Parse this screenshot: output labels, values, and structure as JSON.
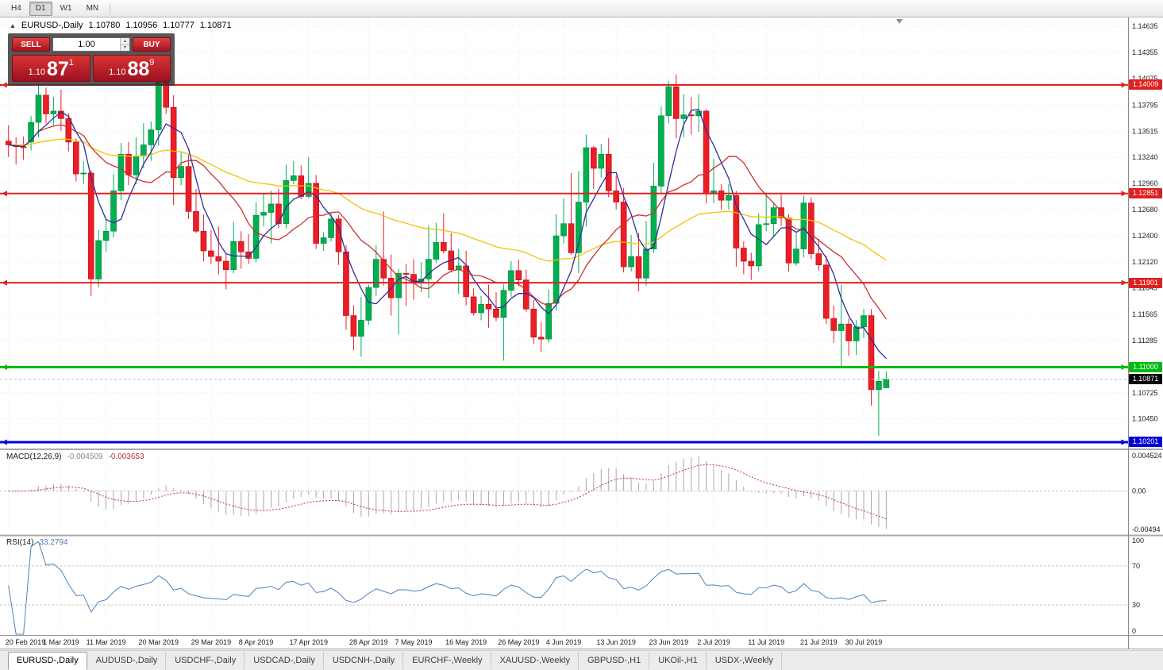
{
  "toolbar": {
    "timeframes": [
      {
        "label": "H4",
        "active": false
      },
      {
        "label": "D1",
        "active": true
      },
      {
        "label": "W1",
        "active": false
      },
      {
        "label": "MN",
        "active": false
      }
    ]
  },
  "icons": {
    "collapse": "▲",
    "spinner_up": "▲",
    "spinner_down": "▼",
    "shift_marker": "▼"
  },
  "chart_header": {
    "symbol_period": "EURUSD-,Daily",
    "open": "1.10780",
    "high": "1.10956",
    "low": "1.10777",
    "close": "1.10871"
  },
  "trade_panel": {
    "sell_label": "SELL",
    "buy_label": "BUY",
    "volume": "1.00",
    "sell_price": {
      "prefix": "1.10",
      "big": "87",
      "sup": "1"
    },
    "buy_price": {
      "prefix": "1.10",
      "big": "88",
      "sup": "9"
    }
  },
  "indicators": {
    "macd": {
      "label": "MACD(12,26,9)",
      "value_main": "-0.004509",
      "value_signal": "-0.003653",
      "ticks": [
        "0.004524",
        "0.00",
        "-0.00494"
      ],
      "params": [
        12,
        26,
        9
      ]
    },
    "rsi": {
      "label": "RSI(14)",
      "value": "33.2794",
      "ticks": [
        "100",
        "70",
        "30",
        "0"
      ],
      "levels": [
        70,
        30
      ],
      "period": 14
    }
  },
  "price_axis": {
    "range": [
      1.10133,
      1.14728
    ],
    "ticks": [
      "1.14635",
      "1.14355",
      "1.14075",
      "1.13795",
      "1.13515",
      "1.13240",
      "1.12960",
      "1.12680",
      "1.12400",
      "1.12120",
      "1.11845",
      "1.11565",
      "1.11285",
      "1.10725",
      "1.10450"
    ],
    "levels": [
      {
        "label": "1.14009",
        "price": 1.14009,
        "color": "#e02020",
        "width": 2
      },
      {
        "label": "1.12851",
        "price": 1.12851,
        "color": "#e02020",
        "width": 2
      },
      {
        "label": "1.11901",
        "price": 1.11901,
        "color": "#e02020",
        "width": 2
      },
      {
        "label": "1.11000",
        "price": 1.11,
        "color": "#00bb10",
        "width": 3
      },
      {
        "label": "1.10201",
        "price": 1.10201,
        "color": "#0000d8",
        "width": 3
      }
    ],
    "current": {
      "label": "1.10871",
      "price": 1.10871,
      "bg": "#000000"
    }
  },
  "chart_data": {
    "type": "candlestick",
    "symbol": "EURUSD-",
    "timeframe": "Daily",
    "ylim": [
      1.10133,
      1.14728
    ],
    "x_ticks": [
      {
        "label": "20 Feb 2019",
        "i": 0
      },
      {
        "label": "1 Mar 2019",
        "i": 7
      },
      {
        "label": "11 Mar 2019",
        "i": 13
      },
      {
        "label": "20 Mar 2019",
        "i": 20
      },
      {
        "label": "29 Mar 2019",
        "i": 27
      },
      {
        "label": "8 Apr 2019",
        "i": 33
      },
      {
        "label": "17 Apr 2019",
        "i": 40
      },
      {
        "label": "28 Apr 2019",
        "i": 48
      },
      {
        "label": "7 May 2019",
        "i": 54
      },
      {
        "label": "16 May 2019",
        "i": 61
      },
      {
        "label": "26 May 2019",
        "i": 68
      },
      {
        "label": "4 Jun 2019",
        "i": 74
      },
      {
        "label": "13 Jun 2019",
        "i": 81
      },
      {
        "label": "23 Jun 2019",
        "i": 88
      },
      {
        "label": "2 Jul 2019",
        "i": 94
      },
      {
        "label": "11 Jul 2019",
        "i": 101
      },
      {
        "label": "21 Jul 2019",
        "i": 108
      },
      {
        "label": "30 Jul 2019",
        "i": 114
      }
    ],
    "moving_averages": [
      {
        "name": "ma-slow",
        "type": "ema",
        "period": 50,
        "color": "#f0c400"
      },
      {
        "name": "ma-mid",
        "type": "sma",
        "period": 12,
        "color": "#cc2f2f"
      },
      {
        "name": "ma-fast",
        "type": "sma",
        "period": 5,
        "color": "#2d2d9e"
      }
    ],
    "ohlc": [
      [
        1.1341,
        1.1358,
        1.1324,
        1.1337
      ],
      [
        1.1337,
        1.1345,
        1.1316,
        1.1335
      ],
      [
        1.1335,
        1.1346,
        1.1321,
        1.1334
      ],
      [
        1.134,
        1.1368,
        1.1331,
        1.1361
      ],
      [
        1.1361,
        1.1403,
        1.1345,
        1.139
      ],
      [
        1.139,
        1.1398,
        1.136,
        1.137
      ],
      [
        1.137,
        1.1388,
        1.1358,
        1.1373
      ],
      [
        1.1373,
        1.1396,
        1.1352,
        1.1365
      ],
      [
        1.1365,
        1.1371,
        1.133,
        1.134
      ],
      [
        1.134,
        1.1344,
        1.1298,
        1.1306
      ],
      [
        1.1306,
        1.132,
        1.1295,
        1.1307
      ],
      [
        1.1307,
        1.131,
        1.1176,
        1.1194
      ],
      [
        1.1194,
        1.1246,
        1.1185,
        1.1235
      ],
      [
        1.1235,
        1.1258,
        1.1223,
        1.1245
      ],
      [
        1.1245,
        1.1306,
        1.1238,
        1.1288
      ],
      [
        1.1288,
        1.1339,
        1.1278,
        1.1327
      ],
      [
        1.1327,
        1.134,
        1.1294,
        1.1305
      ],
      [
        1.1305,
        1.1345,
        1.1295,
        1.1325
      ],
      [
        1.1325,
        1.136,
        1.1312,
        1.1337
      ],
      [
        1.1337,
        1.1362,
        1.132,
        1.1353
      ],
      [
        1.1353,
        1.1412,
        1.1336,
        1.1405
      ],
      [
        1.1405,
        1.1418,
        1.137,
        1.1377
      ],
      [
        1.1377,
        1.139,
        1.1273,
        1.1302
      ],
      [
        1.1302,
        1.133,
        1.1294,
        1.1314
      ],
      [
        1.1314,
        1.1327,
        1.1258,
        1.1266
      ],
      [
        1.1266,
        1.129,
        1.1243,
        1.1245
      ],
      [
        1.1245,
        1.1263,
        1.1213,
        1.1224
      ],
      [
        1.1224,
        1.1246,
        1.121,
        1.1218
      ],
      [
        1.1218,
        1.125,
        1.1199,
        1.1213
      ],
      [
        1.1213,
        1.122,
        1.1183,
        1.1204
      ],
      [
        1.1204,
        1.1255,
        1.12,
        1.1234
      ],
      [
        1.1234,
        1.1245,
        1.1205,
        1.1223
      ],
      [
        1.1223,
        1.1242,
        1.121,
        1.1216
      ],
      [
        1.1216,
        1.1276,
        1.1212,
        1.1262
      ],
      [
        1.1262,
        1.1285,
        1.125,
        1.1265
      ],
      [
        1.1265,
        1.1288,
        1.1232,
        1.1274
      ],
      [
        1.1274,
        1.129,
        1.1248,
        1.1253
      ],
      [
        1.1253,
        1.1316,
        1.1248,
        1.1299
      ],
      [
        1.1299,
        1.132,
        1.1295,
        1.1304
      ],
      [
        1.1304,
        1.1315,
        1.1279,
        1.1282
      ],
      [
        1.1282,
        1.1324,
        1.128,
        1.1296
      ],
      [
        1.1296,
        1.1305,
        1.1226,
        1.1232
      ],
      [
        1.1232,
        1.1244,
        1.1224,
        1.1238
      ],
      [
        1.1238,
        1.1264,
        1.1234,
        1.1258
      ],
      [
        1.1258,
        1.1262,
        1.1209,
        1.1223
      ],
      [
        1.1223,
        1.123,
        1.114,
        1.1155
      ],
      [
        1.1155,
        1.1166,
        1.1118,
        1.1133
      ],
      [
        1.1133,
        1.1175,
        1.1111,
        1.115
      ],
      [
        1.115,
        1.1188,
        1.1145,
        1.1185
      ],
      [
        1.1185,
        1.123,
        1.1176,
        1.1215
      ],
      [
        1.1215,
        1.1266,
        1.1187,
        1.1195
      ],
      [
        1.1195,
        1.122,
        1.1155,
        1.1174
      ],
      [
        1.1174,
        1.1205,
        1.1135,
        1.12
      ],
      [
        1.12,
        1.121,
        1.1165,
        1.1199
      ],
      [
        1.1199,
        1.1215,
        1.1172,
        1.119
      ],
      [
        1.119,
        1.1212,
        1.118,
        1.1194
      ],
      [
        1.1194,
        1.1251,
        1.1174,
        1.1215
      ],
      [
        1.1215,
        1.1254,
        1.1211,
        1.1233
      ],
      [
        1.1233,
        1.1264,
        1.1221,
        1.1224
      ],
      [
        1.1224,
        1.1243,
        1.1201,
        1.1204
      ],
      [
        1.1204,
        1.1226,
        1.1178,
        1.1208
      ],
      [
        1.1208,
        1.1224,
        1.1166,
        1.1175
      ],
      [
        1.1175,
        1.1184,
        1.1155,
        1.1158
      ],
      [
        1.1158,
        1.1176,
        1.115,
        1.1167
      ],
      [
        1.1167,
        1.1188,
        1.1142,
        1.1162
      ],
      [
        1.1162,
        1.118,
        1.1149,
        1.1153
      ],
      [
        1.1153,
        1.1188,
        1.1107,
        1.1182
      ],
      [
        1.1182,
        1.1213,
        1.1175,
        1.1203
      ],
      [
        1.1203,
        1.1215,
        1.1186,
        1.1193
      ],
      [
        1.1193,
        1.1204,
        1.1159,
        1.1162
      ],
      [
        1.1162,
        1.1172,
        1.1125,
        1.1132
      ],
      [
        1.1132,
        1.1148,
        1.1116,
        1.113
      ],
      [
        1.113,
        1.1183,
        1.1126,
        1.1168
      ],
      [
        1.1168,
        1.1263,
        1.116,
        1.124
      ],
      [
        1.124,
        1.128,
        1.1232,
        1.1253
      ],
      [
        1.1253,
        1.1307,
        1.122,
        1.1222
      ],
      [
        1.1222,
        1.1309,
        1.12,
        1.1276
      ],
      [
        1.1276,
        1.1348,
        1.125,
        1.1334
      ],
      [
        1.1334,
        1.1336,
        1.129,
        1.1312
      ],
      [
        1.1312,
        1.1338,
        1.1302,
        1.1327
      ],
      [
        1.1327,
        1.1344,
        1.1281,
        1.1288
      ],
      [
        1.1288,
        1.1304,
        1.1268,
        1.1276
      ],
      [
        1.1276,
        1.1291,
        1.1201,
        1.1207
      ],
      [
        1.1207,
        1.1241,
        1.1202,
        1.1218
      ],
      [
        1.1218,
        1.1243,
        1.1181,
        1.1195
      ],
      [
        1.1195,
        1.1256,
        1.1187,
        1.1226
      ],
      [
        1.1226,
        1.1318,
        1.1222,
        1.1293
      ],
      [
        1.1293,
        1.1378,
        1.1285,
        1.1368
      ],
      [
        1.1368,
        1.1405,
        1.136,
        1.1399
      ],
      [
        1.1399,
        1.1412,
        1.1344,
        1.1365
      ],
      [
        1.1365,
        1.1391,
        1.1345,
        1.1369
      ],
      [
        1.1369,
        1.1388,
        1.1348,
        1.1368
      ],
      [
        1.1368,
        1.1391,
        1.1351,
        1.1373
      ],
      [
        1.1373,
        1.1375,
        1.1275,
        1.1285
      ],
      [
        1.1285,
        1.1322,
        1.1275,
        1.1288
      ],
      [
        1.1288,
        1.1295,
        1.1268,
        1.1278
      ],
      [
        1.1278,
        1.1295,
        1.1268,
        1.1283
      ],
      [
        1.1283,
        1.1288,
        1.1207,
        1.1227
      ],
      [
        1.1227,
        1.1234,
        1.1199,
        1.1213
      ],
      [
        1.1213,
        1.1222,
        1.1193,
        1.1208
      ],
      [
        1.1208,
        1.1264,
        1.1202,
        1.1252
      ],
      [
        1.1252,
        1.1286,
        1.1245,
        1.1253
      ],
      [
        1.1253,
        1.1276,
        1.1239,
        1.127
      ],
      [
        1.127,
        1.1284,
        1.1251,
        1.1259
      ],
      [
        1.1259,
        1.1263,
        1.1202,
        1.1211
      ],
      [
        1.1211,
        1.1243,
        1.1208,
        1.1226
      ],
      [
        1.1226,
        1.1283,
        1.1217,
        1.1275
      ],
      [
        1.1275,
        1.1281,
        1.1215,
        1.1221
      ],
      [
        1.1221,
        1.1237,
        1.1203,
        1.1209
      ],
      [
        1.1209,
        1.1219,
        1.1146,
        1.1152
      ],
      [
        1.1152,
        1.1166,
        1.1126,
        1.1139
      ],
      [
        1.1139,
        1.1188,
        1.1101,
        1.1146
      ],
      [
        1.1146,
        1.1152,
        1.1112,
        1.1128
      ],
      [
        1.1128,
        1.115,
        1.1113,
        1.1143
      ],
      [
        1.1143,
        1.1162,
        1.1131,
        1.1155
      ],
      [
        1.1155,
        1.1162,
        1.1059,
        1.1076
      ],
      [
        1.1076,
        1.1096,
        1.1027,
        1.1085
      ],
      [
        1.1078,
        1.10956,
        1.10777,
        1.10871
      ]
    ]
  },
  "tabs": [
    {
      "label": "EURUSD-,Daily",
      "active": true
    },
    {
      "label": "AUDUSD-,Daily",
      "active": false
    },
    {
      "label": "USDCHF-,Daily",
      "active": false
    },
    {
      "label": "USDCAD-,Daily",
      "active": false
    },
    {
      "label": "USDCNH-,Daily",
      "active": false
    },
    {
      "label": "EURCHF-,Weekly",
      "active": false
    },
    {
      "label": "XAUUSD-,Weekly",
      "active": false
    },
    {
      "label": "GBPUSD-,H1",
      "active": false
    },
    {
      "label": "UKOil-,H1",
      "active": false
    },
    {
      "label": "USDX-,Weekly",
      "active": false
    }
  ],
  "colors": {
    "up": "#00b050",
    "up_border": "#00813a",
    "down": "#ee1c25",
    "down_border": "#a5121a",
    "macd_bar": "#a8a8a8",
    "macd_signal": "#c03333",
    "rsi_line": "#4f81bd",
    "grid": "#ebebeb"
  }
}
